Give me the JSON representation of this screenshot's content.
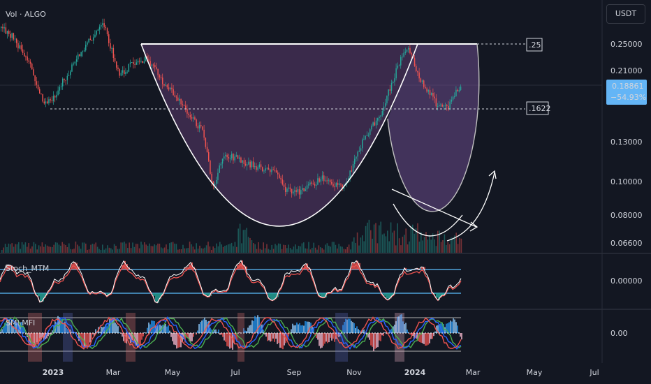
{
  "header": {
    "currency_button": "USDT"
  },
  "chart_data": {
    "type": "candlestick",
    "symbol_label": "Vol · ALGO",
    "price_axis_ticks": [
      "0.25000",
      "0.21000",
      "0.13000",
      "0.10000",
      "0.08000",
      "0.06600"
    ],
    "current_price": "0.18861",
    "change_percent": "−54.93%",
    "time_axis_labels": [
      "2023",
      "Mar",
      "May",
      "Jul",
      "Sep",
      "Nov",
      "2024",
      "Mar",
      "May",
      "Jul"
    ],
    "annotations": {
      "resistance_label": ".25",
      "support_label": ".1622"
    },
    "patterns": [
      "cup",
      "handle",
      "falling-wedge"
    ],
    "indicators": [
      {
        "name": "Stoch_MTM",
        "axis_tick": "0.00000"
      },
      {
        "name": "SMI MFI",
        "axis_tick": "0.00"
      }
    ],
    "colors": {
      "up": "#26a69a",
      "down": "#ef5350",
      "cup_fill": "#5b3a6e",
      "band": "#2962ff",
      "background": "#131722"
    }
  }
}
